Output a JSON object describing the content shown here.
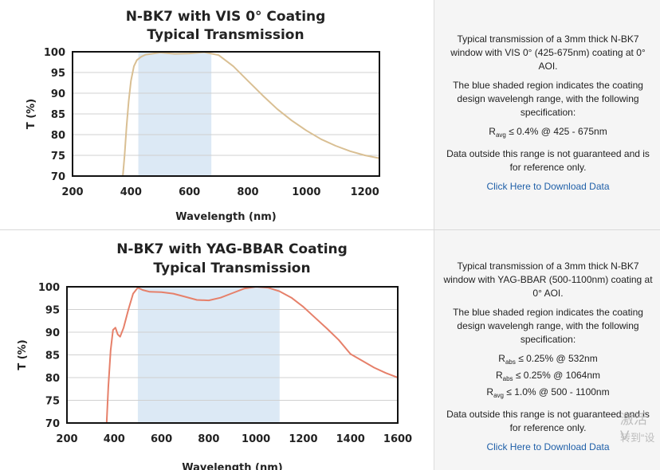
{
  "panels": [
    {
      "description": {
        "intro": "Typical transmission of a 3mm thick N-BK7 window with VIS 0° (425-675nm) coating at 0° AOI.",
        "region_note": "The blue shaded region indicates the coating design wavelengh range, with the following specification:",
        "specs": [
          {
            "sym": "R",
            "sub": "avg",
            "text": " ≤ 0.4% @ 425 - 675nm"
          }
        ],
        "disclaimer": "Data outside this range is not guaranteed and is for reference only.",
        "download_label": "Click Here to Download Data"
      }
    },
    {
      "description": {
        "intro": "Typical transmission of a 3mm thick N-BK7 window with YAG-BBAR (500-1100nm) coating at 0° AOI.",
        "region_note": "The blue shaded region indicates the coating design wavelengh range, with the following specification:",
        "specs": [
          {
            "sym": "R",
            "sub": "abs",
            "text": " ≤ 0.25% @ 532nm"
          },
          {
            "sym": "R",
            "sub": "abs",
            "text": " ≤ 0.25% @ 1064nm"
          },
          {
            "sym": "R",
            "sub": "avg",
            "text": " ≤ 1.0% @ 500 - 1100nm"
          }
        ],
        "disclaimer": "Data outside this range is not guaranteed and is for reference only.",
        "download_label": "Click Here to Download Data"
      }
    }
  ],
  "watermark": {
    "line1": "激活 V",
    "line2": "转到“设"
  },
  "chart_data": [
    {
      "type": "line",
      "title": "N-BK7 with VIS 0° Coating",
      "subtitle": "Typical Transmission",
      "xlabel": "Wavelength (nm)",
      "ylabel": "T (%)",
      "xlim": [
        200,
        1250
      ],
      "ylim": [
        70,
        100
      ],
      "xticks": [
        200,
        400,
        600,
        800,
        1000,
        1200
      ],
      "yticks": [
        70,
        75,
        80,
        85,
        90,
        95,
        100
      ],
      "grid": true,
      "shaded_region": [
        425,
        675
      ],
      "shade_color": "#dce9f5",
      "series": [
        {
          "color": "#d9bf93",
          "x": [
            372,
            378,
            385,
            392,
            400,
            410,
            420,
            435,
            450,
            500,
            550,
            600,
            650,
            700,
            750,
            800,
            850,
            900,
            950,
            1000,
            1050,
            1100,
            1150,
            1200,
            1250
          ],
          "y": [
            70,
            75,
            82,
            88,
            93,
            96.5,
            98,
            98.8,
            99.3,
            99.8,
            99.5,
            99.6,
            99.9,
            99.2,
            96.5,
            93,
            89.5,
            86.2,
            83.4,
            81,
            78.9,
            77.3,
            76,
            75,
            74.3
          ]
        }
      ]
    },
    {
      "type": "line",
      "title": "N-BK7 with YAG-BBAR Coating",
      "subtitle": "Typical Transmission",
      "xlabel": "Wavelength (nm)",
      "ylabel": "T (%)",
      "xlim": [
        200,
        1600
      ],
      "ylim": [
        70,
        100
      ],
      "xticks": [
        200,
        400,
        600,
        800,
        1000,
        1200,
        1400,
        1600
      ],
      "yticks": [
        70,
        75,
        80,
        85,
        90,
        95,
        100
      ],
      "grid": true,
      "shaded_region": [
        500,
        1100
      ],
      "shade_color": "#dce9f5",
      "series": [
        {
          "color": "#e6806a",
          "x": [
            368,
            375,
            385,
            395,
            405,
            415,
            425,
            440,
            460,
            480,
            500,
            520,
            550,
            600,
            650,
            700,
            750,
            800,
            850,
            900,
            950,
            1000,
            1050,
            1100,
            1150,
            1200,
            1250,
            1300,
            1350,
            1400,
            1450,
            1500,
            1550,
            1600
          ],
          "y": [
            70,
            78,
            86,
            90.5,
            91,
            89.5,
            89,
            91,
            95,
            98.5,
            99.8,
            99.3,
            98.9,
            98.8,
            98.5,
            97.8,
            97.1,
            97,
            97.6,
            98.6,
            99.6,
            100,
            99.8,
            99,
            97.6,
            95.6,
            93.2,
            90.8,
            88.3,
            85.2,
            83.7,
            82.2,
            81,
            80
          ]
        }
      ]
    }
  ]
}
